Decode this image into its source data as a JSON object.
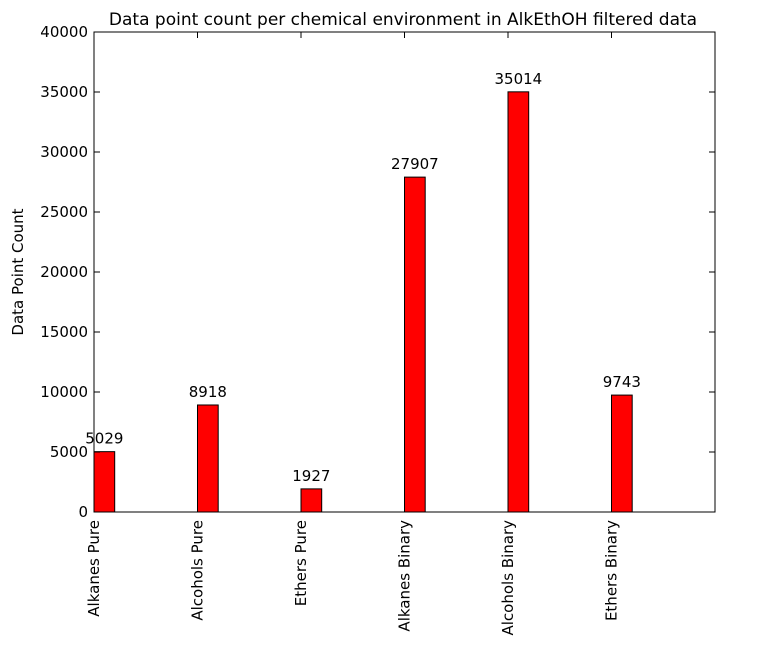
{
  "chart_data": {
    "type": "bar",
    "title": "Data point count per chemical environment in AlkEthOH filtered data",
    "xlabel": "",
    "ylabel": "Data Point Count",
    "categories": [
      "Alkanes Pure",
      "Alcohols Pure",
      "Ethers Pure",
      "Alkanes Binary",
      "Alcohols Binary",
      "Ethers Binary"
    ],
    "values": [
      5029,
      8918,
      1927,
      27907,
      35014,
      9743
    ],
    "data_labels": [
      "5029",
      "8918",
      "1927",
      "27907",
      "35014",
      "9743"
    ],
    "ylim": [
      0,
      40000
    ],
    "xlim": [
      0,
      6
    ],
    "yticks": [
      0,
      5000,
      10000,
      15000,
      20000,
      25000,
      30000,
      35000,
      40000
    ],
    "ytick_labels": [
      "0",
      "5000",
      "10000",
      "15000",
      "20000",
      "25000",
      "30000",
      "35000",
      "40000"
    ],
    "grid": false,
    "bar_color": "#ff0000",
    "edge_color": "#000000"
  }
}
